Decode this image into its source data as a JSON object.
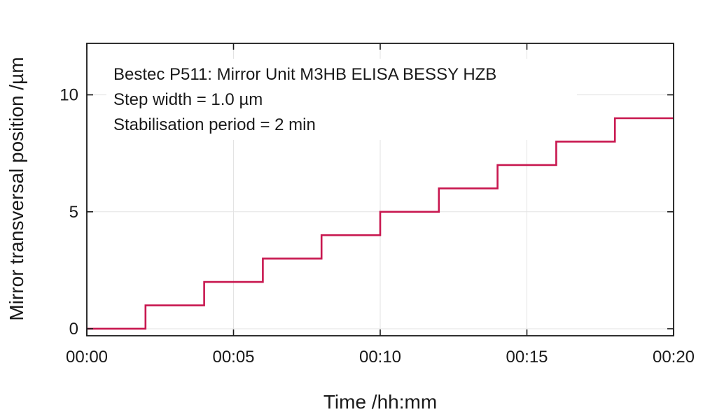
{
  "chart_data": {
    "type": "line",
    "line_style": "step",
    "annotation": [
      "Bestec P511: Mirror Unit M3HB ELISA BESSY HZB",
      "Step width = 1.0 µm",
      "Stabilisation period = 2 min"
    ],
    "xlabel": "Time /hh:mm",
    "ylabel": "Mirror transversal position /µm",
    "xlim": [
      "00:00",
      "00:20"
    ],
    "ylim": [
      -0.3,
      12.2
    ],
    "x_ticks": [
      "00:00",
      "00:05",
      "00:10",
      "00:15",
      "00:20"
    ],
    "y_ticks": [
      "0",
      "5",
      "10"
    ],
    "grid": true,
    "colors": {
      "series": "#c8174f",
      "frame": "#1a1a1a",
      "grid": "#e3e3e3"
    },
    "series": [
      {
        "x": [
          "00:00",
          "00:02",
          "00:04",
          "00:06",
          "00:08",
          "00:10",
          "00:12",
          "00:14",
          "00:16",
          "00:18",
          "00:20"
        ],
        "values": [
          0,
          1,
          2,
          3,
          4,
          5,
          6,
          7,
          8,
          9,
          9
        ]
      }
    ]
  }
}
